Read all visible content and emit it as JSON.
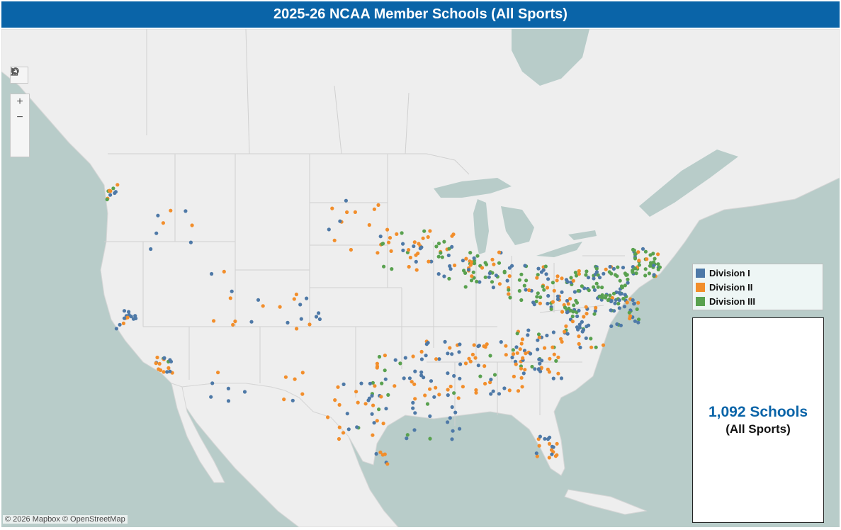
{
  "title": "2025-26 NCAA Member Schools (All Sports)",
  "map_tools": {
    "search_icon": "magnifier-icon",
    "zoom_in": "+",
    "zoom_out": "−",
    "home_icon": "home-icon",
    "expand_icon": "play-icon"
  },
  "legend": {
    "items": [
      {
        "label": "Division I",
        "color": "#4e79a7"
      },
      {
        "label": "Division II",
        "color": "#f28e2b"
      },
      {
        "label": "Division III",
        "color": "#59a14f"
      }
    ]
  },
  "summary": {
    "count": "1,092 Schools",
    "subtitle": "(All Sports)"
  },
  "attribution": "© 2026 Mapbox  © OpenStreetMap",
  "colors": {
    "title_bar": "#0a64a8",
    "water": "#b8ccc9",
    "land": "#eeeeee"
  }
}
